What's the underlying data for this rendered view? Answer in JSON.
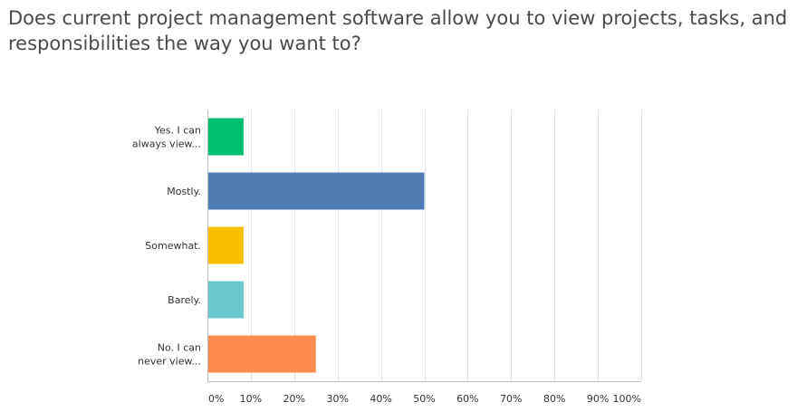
{
  "question": {
    "text": "Does current project management software allow you to view projects, tasks, and responsibilities the way you want to?"
  },
  "colors": {
    "title_text": "#4a4a4a",
    "grid": "#e3e3e3",
    "axis": "#bdbdbd",
    "label_text": "#333333"
  },
  "chart_data": {
    "type": "bar",
    "orientation": "horizontal",
    "categories": [
      [
        "Yes. I can",
        "always view..."
      ],
      [
        "Mostly."
      ],
      [
        "Somewhat."
      ],
      [
        "Barely."
      ],
      [
        "No. I can",
        "never view..."
      ]
    ],
    "values": [
      8.33,
      50,
      8.33,
      8.33,
      25
    ],
    "value_unit": "%",
    "bar_colors": [
      "#00bf6f",
      "#507cb6",
      "#f9be00",
      "#6bc8cd",
      "#ff8b4f"
    ],
    "xlim": [
      0,
      100
    ],
    "x_ticks": [
      "0%",
      "10%",
      "20%",
      "30%",
      "40%",
      "50%",
      "60%",
      "70%",
      "80%",
      "90%",
      "100%"
    ],
    "grid": true
  }
}
